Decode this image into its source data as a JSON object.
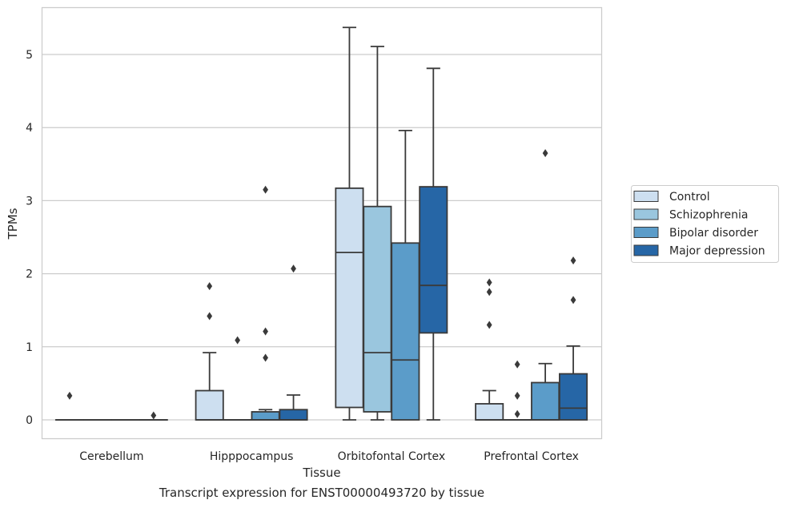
{
  "caption": "Transcript expression for ENST00000493720 by tissue",
  "chart_data": {
    "type": "box",
    "title": "",
    "xlabel": "Tissue",
    "ylabel": "TPMs",
    "ylim": [
      -0.26,
      5.65
    ],
    "yticks": [
      0,
      1,
      2,
      3,
      4,
      5
    ],
    "grid": "horizontal",
    "legend_position": "right",
    "categories": [
      "Cerebellum",
      "Hipppocampus",
      "Orbitofontal Cortex",
      "Prefrontal Cortex"
    ],
    "series": [
      {
        "name": "Control",
        "color": "#cddff0",
        "boxes": [
          {
            "whislo": 0,
            "q1": 0,
            "med": 0,
            "q3": 0,
            "whishi": 0,
            "fliers": [
              0.33
            ]
          },
          {
            "whislo": 0,
            "q1": 0,
            "med": 0,
            "q3": 0.4,
            "whishi": 0.92,
            "fliers": [
              1.42,
              1.83
            ]
          },
          {
            "whislo": 0,
            "q1": 0.17,
            "med": 2.29,
            "q3": 3.17,
            "whishi": 5.37,
            "fliers": []
          },
          {
            "whislo": 0,
            "q1": 0,
            "med": 0,
            "q3": 0.22,
            "whishi": 0.4,
            "fliers": [
              1.3,
              1.75,
              1.88
            ]
          }
        ]
      },
      {
        "name": "Schizophrenia",
        "color": "#9ac6de",
        "boxes": [
          {
            "whislo": 0,
            "q1": 0,
            "med": 0,
            "q3": 0,
            "whishi": 0,
            "fliers": []
          },
          {
            "whislo": 0,
            "q1": 0,
            "med": 0,
            "q3": 0,
            "whishi": 0,
            "fliers": [
              1.09
            ]
          },
          {
            "whislo": 0,
            "q1": 0.11,
            "med": 0.92,
            "q3": 2.92,
            "whishi": 5.11,
            "fliers": []
          },
          {
            "whislo": 0,
            "q1": 0,
            "med": 0,
            "q3": 0,
            "whishi": 0,
            "fliers": [
              0.08,
              0.33,
              0.76
            ]
          }
        ]
      },
      {
        "name": "Bipolar disorder",
        "color": "#5b9cc9",
        "boxes": [
          {
            "whislo": 0,
            "q1": 0,
            "med": 0,
            "q3": 0,
            "whishi": 0,
            "fliers": []
          },
          {
            "whislo": 0,
            "q1": 0,
            "med": 0,
            "q3": 0.11,
            "whishi": 0.14,
            "fliers": [
              0.85,
              1.21,
              3.15
            ]
          },
          {
            "whislo": 0,
            "q1": 0,
            "med": 0.82,
            "q3": 2.42,
            "whishi": 3.96,
            "fliers": []
          },
          {
            "whislo": 0,
            "q1": 0,
            "med": 0,
            "q3": 0.51,
            "whishi": 0.77,
            "fliers": [
              3.65
            ]
          }
        ]
      },
      {
        "name": "Major depression",
        "color": "#2666a6",
        "boxes": [
          {
            "whislo": 0,
            "q1": 0,
            "med": 0,
            "q3": 0,
            "whishi": 0,
            "fliers": [
              0.06
            ]
          },
          {
            "whislo": 0,
            "q1": 0,
            "med": 0,
            "q3": 0.14,
            "whishi": 0.34,
            "fliers": [
              2.07
            ]
          },
          {
            "whislo": 0,
            "q1": 1.19,
            "med": 1.84,
            "q3": 3.19,
            "whishi": 4.81,
            "fliers": []
          },
          {
            "whislo": 0,
            "q1": 0,
            "med": 0.16,
            "q3": 0.63,
            "whishi": 1.01,
            "fliers": [
              1.64,
              2.18
            ]
          }
        ]
      }
    ]
  }
}
